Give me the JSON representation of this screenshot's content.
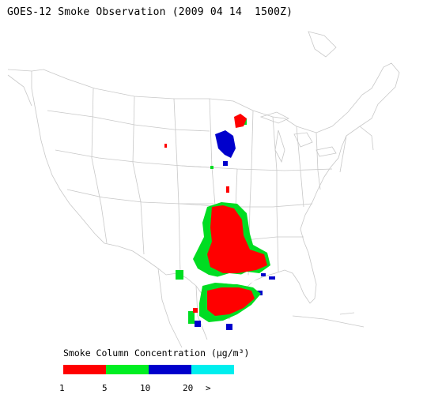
{
  "title": "GOES-12 Smoke Observation (2009 04 14  1500Z)",
  "legend": {
    "title_prefix": "Smoke Column Concentration (",
    "title_unit": "μg/m³",
    "title_suffix": ")",
    "colors": [
      "#ff0000",
      "#00ee22",
      "#0000cc",
      "#00eeee"
    ],
    "tick_labels": [
      "1",
      "5",
      "10",
      "20",
      ">"
    ]
  },
  "map": {
    "region": "contiguous-united-states",
    "boundary_color": "#cccccc",
    "smoke_regions": [
      {
        "area": "eastern-oklahoma-arkansas-louisiana",
        "level": "1-5"
      },
      {
        "area": "southern-texas",
        "level": "1-5"
      },
      {
        "area": "minnesota-wisconsin",
        "level": "10-20"
      },
      {
        "area": "northern-wisconsin",
        "level": "1-5"
      }
    ]
  }
}
